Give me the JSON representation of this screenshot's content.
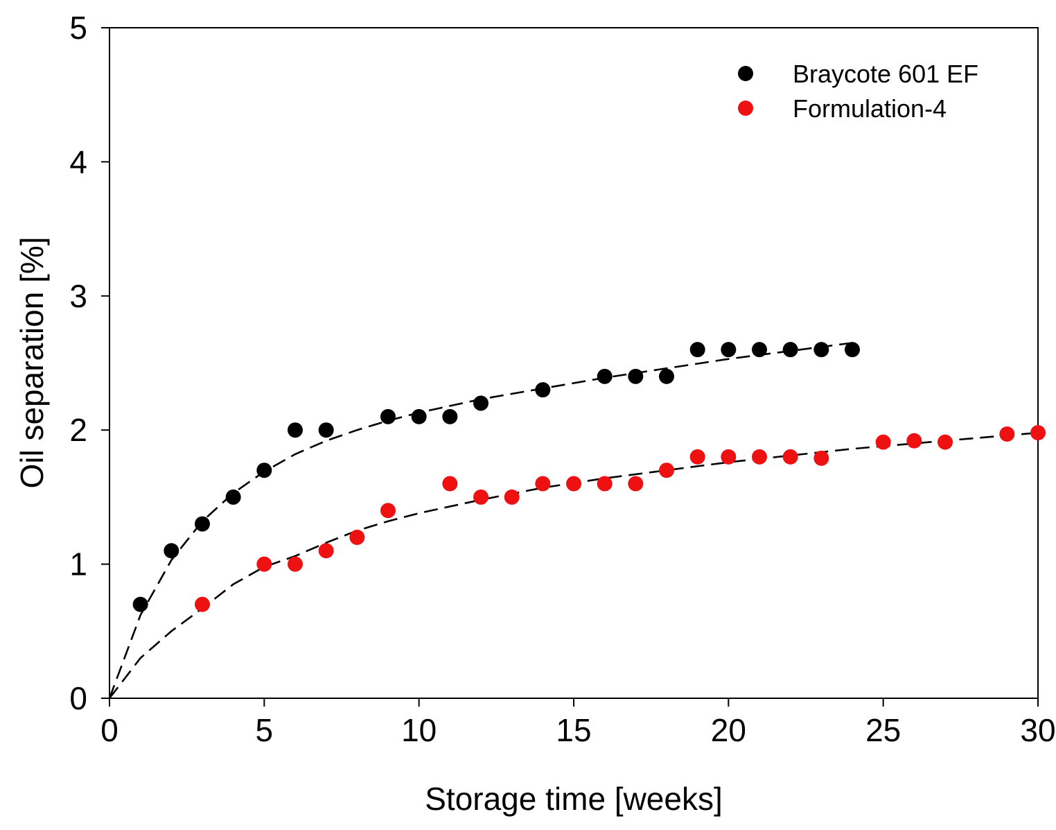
{
  "chart_data": {
    "type": "scatter",
    "xlabel": "Storage time [weeks]",
    "ylabel": "Oil separation [%]",
    "xlim": [
      0,
      30
    ],
    "ylim": [
      0,
      5
    ],
    "xticks": [
      0,
      5,
      10,
      15,
      20,
      25,
      30
    ],
    "yticks": [
      0,
      1,
      2,
      3,
      4,
      5
    ],
    "grid": false,
    "legend_position": "top-right",
    "series": [
      {
        "name": "Braycote 601 EF",
        "color": "#000000",
        "x": [
          1,
          2,
          3,
          4,
          5,
          6,
          7,
          9,
          10,
          11,
          12,
          14,
          16,
          17,
          18,
          19,
          20,
          21,
          22,
          23,
          24
        ],
        "y": [
          0.7,
          1.1,
          1.3,
          1.5,
          1.7,
          2.0,
          2.0,
          2.1,
          2.1,
          2.1,
          2.2,
          2.3,
          2.4,
          2.4,
          2.4,
          2.6,
          2.6,
          2.6,
          2.6,
          2.6,
          2.6
        ],
        "fit": {
          "style": "dashed",
          "x": [
            0,
            1,
            2,
            3,
            4,
            5,
            6,
            7,
            8,
            9,
            10,
            12,
            14,
            16,
            18,
            20,
            22,
            24
          ],
          "y": [
            0,
            0.62,
            1.03,
            1.32,
            1.53,
            1.69,
            1.82,
            1.92,
            2.0,
            2.07,
            2.13,
            2.23,
            2.31,
            2.39,
            2.46,
            2.53,
            2.59,
            2.65
          ]
        }
      },
      {
        "name": "Formulation-4",
        "color": "#ee1111",
        "x": [
          3,
          5,
          6,
          7,
          8,
          9,
          11,
          12,
          13,
          14,
          15,
          16,
          17,
          18,
          19,
          20,
          21,
          22,
          23,
          25,
          26,
          27,
          29,
          30
        ],
        "y": [
          0.7,
          1.0,
          1.0,
          1.1,
          1.2,
          1.4,
          1.6,
          1.5,
          1.5,
          1.6,
          1.6,
          1.6,
          1.6,
          1.7,
          1.8,
          1.8,
          1.8,
          1.8,
          1.79,
          1.91,
          1.92,
          1.91,
          1.97,
          1.98
        ],
        "fit": {
          "style": "dashed",
          "x": [
            0,
            1,
            2,
            3,
            4,
            5,
            6,
            7,
            8,
            9,
            10,
            12,
            14,
            16,
            18,
            20,
            22,
            24,
            26,
            28,
            30
          ],
          "y": [
            0,
            0.3,
            0.5,
            0.67,
            0.85,
            0.98,
            1.06,
            1.16,
            1.25,
            1.32,
            1.38,
            1.48,
            1.57,
            1.64,
            1.7,
            1.76,
            1.81,
            1.86,
            1.9,
            1.94,
            1.98
          ]
        }
      }
    ]
  }
}
